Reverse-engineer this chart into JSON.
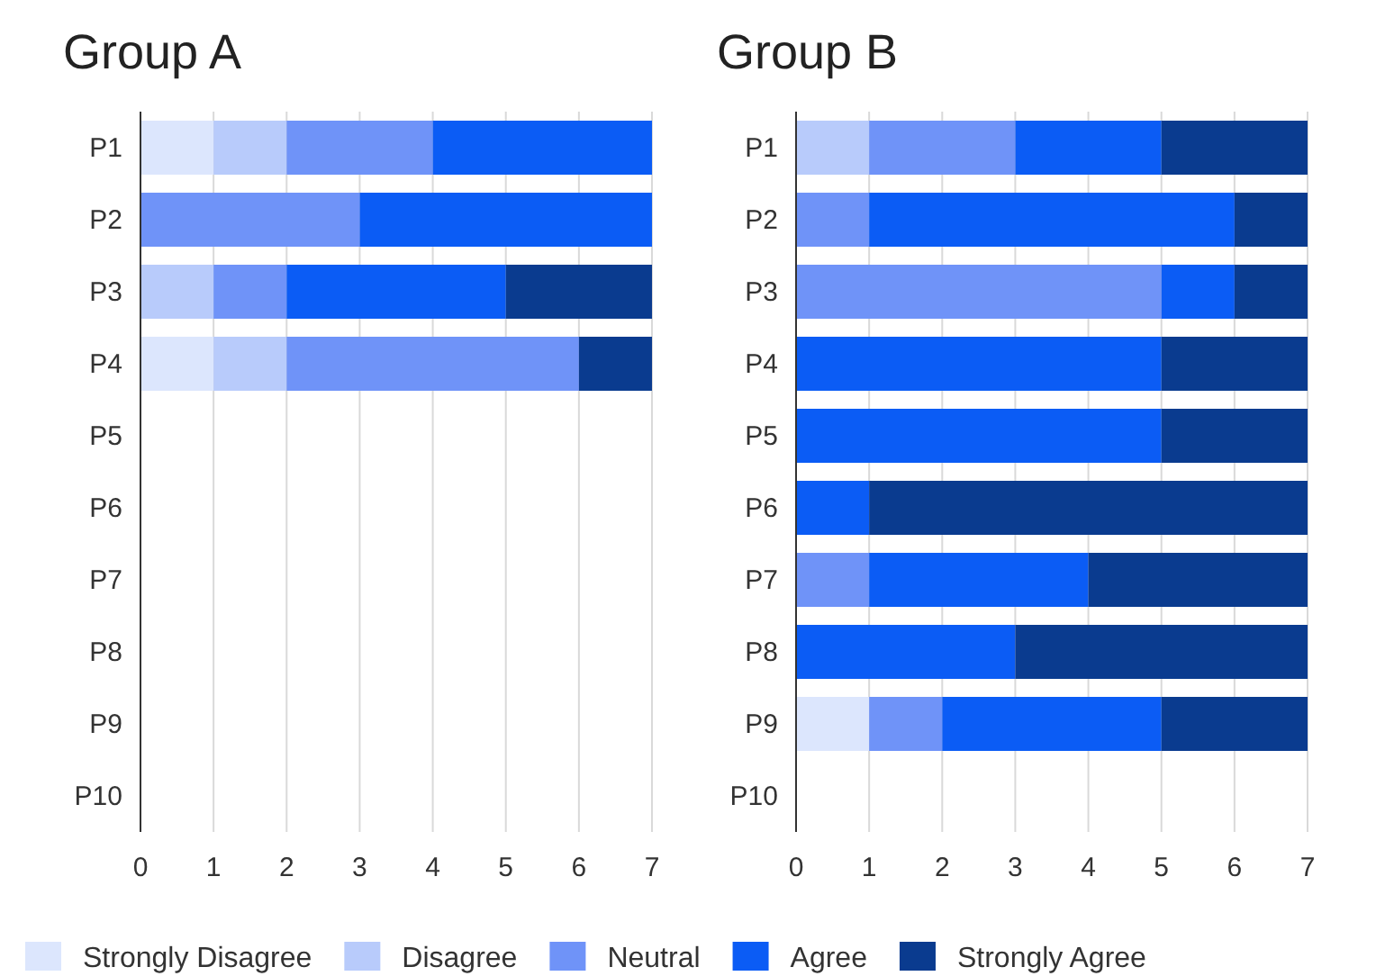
{
  "chart_data": [
    {
      "type": "bar",
      "title": "Group A",
      "orientation": "horizontal",
      "stacked": true,
      "categories": [
        "P1",
        "P2",
        "P3",
        "P4",
        "P5",
        "P6",
        "P7",
        "P8",
        "P9",
        "P10"
      ],
      "xlim": [
        0,
        7
      ],
      "xticks": [
        0,
        1,
        2,
        3,
        4,
        5,
        6,
        7
      ],
      "grid": "x",
      "legend": false,
      "series": [
        {
          "color": "#dce6fd",
          "values": [
            1,
            0,
            0,
            1,
            null,
            null,
            null,
            null,
            null,
            null
          ]
        },
        {
          "color": "#b8cbfb",
          "values": [
            1,
            0,
            1,
            1,
            null,
            null,
            null,
            null,
            null,
            null
          ]
        },
        {
          "color": "#6f93f8",
          "values": [
            2,
            3,
            1,
            4,
            null,
            null,
            null,
            null,
            null,
            null
          ]
        },
        {
          "color": "#0b5cf5",
          "values": [
            3,
            4,
            3,
            0,
            null,
            null,
            null,
            null,
            null,
            null
          ]
        },
        {
          "color": "#0a3b8f",
          "values": [
            0,
            0,
            2,
            1,
            null,
            null,
            null,
            null,
            null,
            null
          ]
        }
      ]
    },
    {
      "type": "bar",
      "title": "Group B",
      "orientation": "horizontal",
      "stacked": true,
      "categories": [
        "P1",
        "P2",
        "P3",
        "P4",
        "P5",
        "P6",
        "P7",
        "P8",
        "P9",
        "P10"
      ],
      "xlim": [
        0,
        7
      ],
      "xticks": [
        0,
        1,
        2,
        3,
        4,
        5,
        6,
        7
      ],
      "grid": "x",
      "legend": "bottom",
      "series": [
        {
          "name": "Strongly Disagree",
          "color": "#dce6fd",
          "values": [
            0,
            0,
            0,
            0,
            0,
            0,
            0,
            0,
            1,
            null
          ]
        },
        {
          "name": "Disagree",
          "color": "#b8cbfb",
          "values": [
            1,
            0,
            0,
            0,
            0,
            0,
            0,
            0,
            0,
            null
          ]
        },
        {
          "name": "Neutral",
          "color": "#6f93f8",
          "values": [
            2,
            1,
            5,
            0,
            0,
            0,
            1,
            0,
            1,
            null
          ]
        },
        {
          "name": "Agree",
          "color": "#0b5cf5",
          "values": [
            2,
            5,
            1,
            5,
            5,
            1,
            3,
            3,
            3,
            null
          ]
        },
        {
          "name": "Strongly Agree",
          "color": "#0a3b8f",
          "values": [
            2,
            1,
            1,
            2,
            2,
            6,
            3,
            4,
            2,
            null
          ]
        }
      ]
    }
  ]
}
